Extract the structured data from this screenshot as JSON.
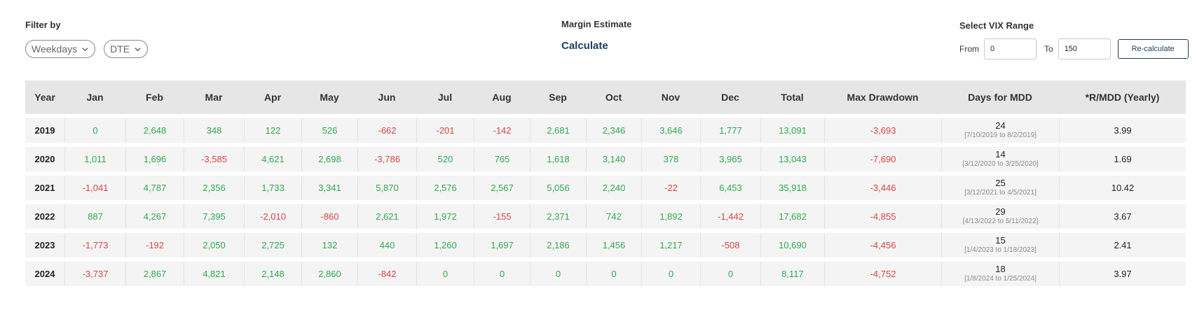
{
  "filters": {
    "label": "Filter by",
    "weekdays": "Weekdays",
    "dte": "DTE"
  },
  "margin": {
    "label": "Margin Estimate",
    "link": "Calculate"
  },
  "vix": {
    "label": "Select VIX Range",
    "from_label": "From",
    "from_value": "0",
    "to_label": "To",
    "to_value": "150",
    "button": "Re-calculate"
  },
  "table": {
    "headers": [
      "Year",
      "Jan",
      "Feb",
      "Mar",
      "Apr",
      "May",
      "Jun",
      "Jul",
      "Aug",
      "Sep",
      "Oct",
      "Nov",
      "Dec",
      "Total",
      "Max Drawdown",
      "Days for MDD",
      "*R/MDD (Yearly)"
    ],
    "rows": [
      {
        "year": "2019",
        "months": [
          "0",
          "2,648",
          "348",
          "122",
          "526",
          "-662",
          "-201",
          "-142",
          "2,681",
          "2,346",
          "3,646",
          "1,777"
        ],
        "total": "13,091",
        "mdd": "-3,693",
        "days": "24",
        "range": "[7/10/2019 to 8/2/2019]",
        "rmdd": "3.99"
      },
      {
        "year": "2020",
        "months": [
          "1,011",
          "1,696",
          "-3,585",
          "4,621",
          "2,698",
          "-3,786",
          "520",
          "765",
          "1,618",
          "3,140",
          "378",
          "3,965"
        ],
        "total": "13,043",
        "mdd": "-7,690",
        "days": "14",
        "range": "[3/12/2020 to 3/25/2020]",
        "rmdd": "1.69"
      },
      {
        "year": "2021",
        "months": [
          "-1,041",
          "4,787",
          "2,356",
          "1,733",
          "3,341",
          "5,870",
          "2,576",
          "2,567",
          "5,056",
          "2,240",
          "-22",
          "6,453"
        ],
        "total": "35,918",
        "mdd": "-3,446",
        "days": "25",
        "range": "[3/12/2021 to 4/5/2021]",
        "rmdd": "10.42"
      },
      {
        "year": "2022",
        "months": [
          "887",
          "4,267",
          "7,395",
          "-2,010",
          "-860",
          "2,621",
          "1,972",
          "-155",
          "2,371",
          "742",
          "1,892",
          "-1,442"
        ],
        "total": "17,682",
        "mdd": "-4,855",
        "days": "29",
        "range": "[4/13/2022 to 5/11/2022]",
        "rmdd": "3.67"
      },
      {
        "year": "2023",
        "months": [
          "-1,773",
          "-192",
          "2,050",
          "2,725",
          "132",
          "440",
          "1,260",
          "1,697",
          "2,186",
          "1,456",
          "1,217",
          "-508"
        ],
        "total": "10,690",
        "mdd": "-4,456",
        "days": "15",
        "range": "[1/4/2023 to 1/18/2023]",
        "rmdd": "2.41"
      },
      {
        "year": "2024",
        "months": [
          "-3,737",
          "2,867",
          "4,821",
          "2,148",
          "2,860",
          "-842",
          "0",
          "0",
          "0",
          "0",
          "0",
          "0"
        ],
        "total": "8,117",
        "mdd": "-4,752",
        "days": "18",
        "range": "[1/8/2024 to 1/25/2024]",
        "rmdd": "3.97"
      }
    ]
  },
  "colors": {
    "positive": "#2fa84f",
    "negative": "#d64545",
    "accent": "#1d3d5e",
    "header_bg": "#e6e6e6",
    "row_bg": "#f4f4f4"
  },
  "icons": {
    "dropdown": "chevron-down-icon"
  }
}
